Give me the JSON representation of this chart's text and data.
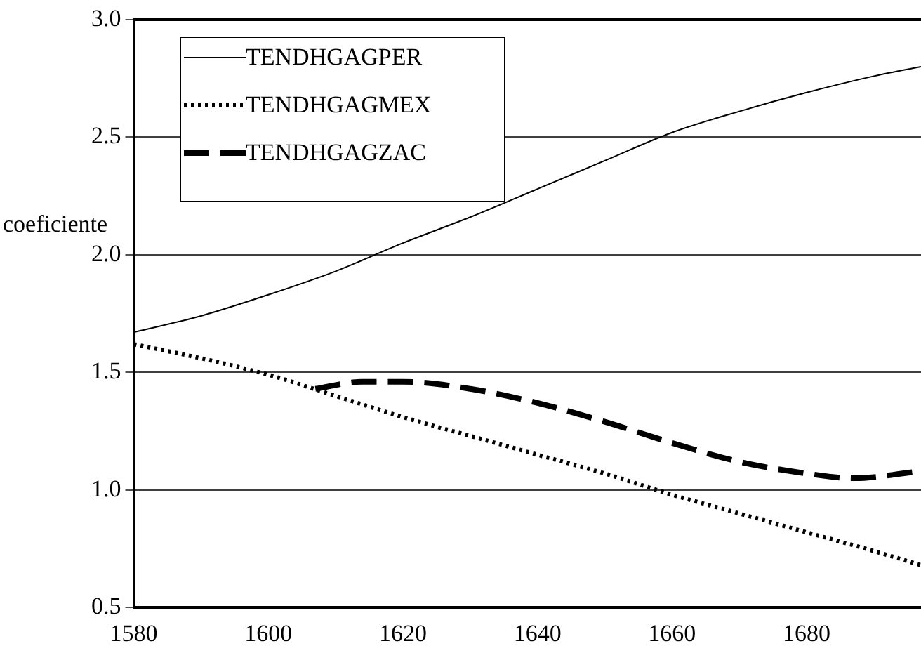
{
  "chart_data": {
    "type": "line",
    "ylabel": "coeficiente",
    "x": [
      1580,
      1590,
      1600,
      1610,
      1620,
      1630,
      1640,
      1650,
      1660,
      1670,
      1680,
      1690,
      1697
    ],
    "xlim": [
      1580,
      1697
    ],
    "xticks": [
      1580,
      1600,
      1620,
      1640,
      1660,
      1680
    ],
    "ylim": [
      0.5,
      3.0
    ],
    "yticks": [
      {
        "value": 0.5,
        "label": "0.5"
      },
      {
        "value": 1.0,
        "label": "1.0"
      },
      {
        "value": 1.5,
        "label": "1.5"
      },
      {
        "value": 2.0,
        "label": "2.0"
      },
      {
        "value": 2.5,
        "label": "2.5"
      },
      {
        "value": 3.0,
        "label": "3.0"
      }
    ],
    "grid": "y",
    "legend": "top left",
    "marker": "none",
    "series": [
      {
        "name": "TENDHGAGPER",
        "color": "#000000",
        "line_style": "solid",
        "values": [
          1.67,
          1.74,
          1.83,
          1.93,
          2.05,
          2.16,
          2.28,
          2.4,
          2.52,
          2.61,
          2.69,
          2.76,
          2.8
        ]
      },
      {
        "name": "TENDHGAGMEX",
        "color": "#000000",
        "line_style": "dotted",
        "values": [
          1.62,
          1.56,
          1.49,
          1.4,
          1.31,
          1.23,
          1.15,
          1.07,
          0.98,
          0.9,
          0.82,
          0.74,
          0.68
        ]
      },
      {
        "name": "TENDHGAGZAC",
        "color": "#000000",
        "line_style": "dashed",
        "x": [
          1607,
          1614,
          1620,
          1630,
          1640,
          1650,
          1660,
          1670,
          1680,
          1687,
          1697
        ],
        "values": [
          1.43,
          1.46,
          1.46,
          1.43,
          1.37,
          1.29,
          1.2,
          1.12,
          1.07,
          1.05,
          1.08
        ]
      }
    ]
  }
}
